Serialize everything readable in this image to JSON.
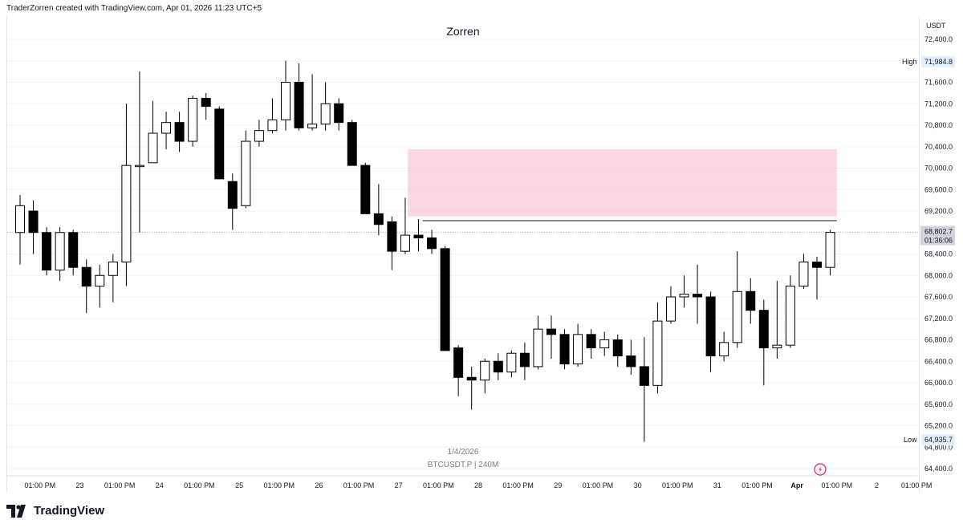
{
  "header": {
    "credit": "TraderZorren created with TradingView.com, Apr 01, 2026 11:23 UTC+5"
  },
  "footer": {
    "brand": "TradingView"
  },
  "chart_data": {
    "type": "candlestick",
    "title": "Zorren",
    "symbol_label": "BTCUSDT.P | 240M",
    "date_label": "1/4/2026",
    "currency": "USDT",
    "ylim": [
      64000,
      72800
    ],
    "y_ticks": [
      72400,
      72000,
      71600,
      71200,
      70800,
      70400,
      70000,
      69600,
      69200,
      68800,
      68400,
      68000,
      67600,
      67200,
      66800,
      66400,
      66000,
      65600,
      65200,
      64800,
      64400
    ],
    "y_tick_labels": [
      "72,400.0",
      "72,000.0",
      "71,600.0",
      "71,200.0",
      "70,800.0",
      "70,400.0",
      "70,000.0",
      "69,600.0",
      "69,200.0",
      "68,800.0",
      "68,400.0",
      "68,000.0",
      "67,600.0",
      "67,200.0",
      "66,800.0",
      "66,400.0",
      "66,000.0",
      "65,600.0",
      "65,200.0",
      "64,800.0",
      "64,400.0"
    ],
    "x_ticks": [
      {
        "idx": 1.5,
        "label": "01:00 PM",
        "bold": false
      },
      {
        "idx": 4.5,
        "label": "23",
        "bold": false
      },
      {
        "idx": 7.5,
        "label": "01:00 PM",
        "bold": false
      },
      {
        "idx": 10.5,
        "label": "24",
        "bold": false
      },
      {
        "idx": 13.5,
        "label": "01:00 PM",
        "bold": false
      },
      {
        "idx": 16.5,
        "label": "25",
        "bold": false
      },
      {
        "idx": 19.5,
        "label": "01:00 PM",
        "bold": false
      },
      {
        "idx": 22.5,
        "label": "26",
        "bold": false
      },
      {
        "idx": 25.5,
        "label": "01:00 PM",
        "bold": false
      },
      {
        "idx": 28.5,
        "label": "27",
        "bold": false
      },
      {
        "idx": 31.5,
        "label": "01:00 PM",
        "bold": false
      },
      {
        "idx": 34.5,
        "label": "28",
        "bold": false
      },
      {
        "idx": 37.5,
        "label": "01:00 PM",
        "bold": false
      },
      {
        "idx": 40.5,
        "label": "29",
        "bold": false
      },
      {
        "idx": 43.5,
        "label": "01:00 PM",
        "bold": false
      },
      {
        "idx": 46.5,
        "label": "30",
        "bold": false
      },
      {
        "idx": 49.5,
        "label": "01:00 PM",
        "bold": false
      },
      {
        "idx": 52.5,
        "label": "31",
        "bold": false
      },
      {
        "idx": 55.5,
        "label": "01:00 PM",
        "bold": false
      },
      {
        "idx": 58.5,
        "label": "Apr",
        "bold": true
      },
      {
        "idx": 61.5,
        "label": "01:00 PM",
        "bold": false
      },
      {
        "idx": 64.5,
        "label": "2",
        "bold": false
      },
      {
        "idx": 67.5,
        "label": "01:00 PM",
        "bold": false
      }
    ],
    "candles": [
      {
        "o": 68800,
        "h": 69500,
        "l": 68200,
        "c": 69300
      },
      {
        "o": 69200,
        "h": 69400,
        "l": 68400,
        "c": 68800
      },
      {
        "o": 68800,
        "h": 68900,
        "l": 68000,
        "c": 68100
      },
      {
        "o": 68100,
        "h": 68900,
        "l": 67900,
        "c": 68800
      },
      {
        "o": 68800,
        "h": 68850,
        "l": 68000,
        "c": 68150
      },
      {
        "o": 68150,
        "h": 68300,
        "l": 67300,
        "c": 67800
      },
      {
        "o": 67800,
        "h": 68200,
        "l": 67400,
        "c": 68000
      },
      {
        "o": 68000,
        "h": 68400,
        "l": 67500,
        "c": 68250
      },
      {
        "o": 68250,
        "h": 71200,
        "l": 67800,
        "c": 70050
      },
      {
        "o": 70050,
        "h": 71800,
        "l": 68800,
        "c": 70050
      },
      {
        "o": 70100,
        "h": 71250,
        "l": 70100,
        "c": 70650
      },
      {
        "o": 70650,
        "h": 71050,
        "l": 70350,
        "c": 70850
      },
      {
        "o": 70850,
        "h": 71050,
        "l": 70300,
        "c": 70500
      },
      {
        "o": 70500,
        "h": 71350,
        "l": 70400,
        "c": 71300
      },
      {
        "o": 71300,
        "h": 71400,
        "l": 70900,
        "c": 71150
      },
      {
        "o": 71100,
        "h": 71150,
        "l": 69800,
        "c": 69800
      },
      {
        "o": 69750,
        "h": 69900,
        "l": 68850,
        "c": 69250
      },
      {
        "o": 69300,
        "h": 70700,
        "l": 69250,
        "c": 70500
      },
      {
        "o": 70500,
        "h": 70900,
        "l": 70400,
        "c": 70700
      },
      {
        "o": 70700,
        "h": 71300,
        "l": 70650,
        "c": 70900
      },
      {
        "o": 70900,
        "h": 72000,
        "l": 70700,
        "c": 71600
      },
      {
        "o": 71600,
        "h": 71950,
        "l": 70700,
        "c": 70750
      },
      {
        "o": 70750,
        "h": 71750,
        "l": 70700,
        "c": 70820
      },
      {
        "o": 70820,
        "h": 71600,
        "l": 70700,
        "c": 71200
      },
      {
        "o": 71200,
        "h": 71300,
        "l": 70700,
        "c": 70850
      },
      {
        "o": 70850,
        "h": 70900,
        "l": 70050,
        "c": 70050
      },
      {
        "o": 70050,
        "h": 70100,
        "l": 69150,
        "c": 69150
      },
      {
        "o": 69150,
        "h": 69700,
        "l": 68750,
        "c": 68950
      },
      {
        "o": 69000,
        "h": 69100,
        "l": 68100,
        "c": 68450
      },
      {
        "o": 68450,
        "h": 69450,
        "l": 68400,
        "c": 68750
      },
      {
        "o": 68750,
        "h": 69050,
        "l": 68450,
        "c": 68700
      },
      {
        "o": 68700,
        "h": 68850,
        "l": 68400,
        "c": 68500
      },
      {
        "o": 68500,
        "h": 68550,
        "l": 66600,
        "c": 66600
      },
      {
        "o": 66650,
        "h": 66700,
        "l": 65750,
        "c": 66100
      },
      {
        "o": 66100,
        "h": 66300,
        "l": 65500,
        "c": 66050
      },
      {
        "o": 66050,
        "h": 66450,
        "l": 65800,
        "c": 66400
      },
      {
        "o": 66400,
        "h": 66550,
        "l": 66050,
        "c": 66200
      },
      {
        "o": 66200,
        "h": 66600,
        "l": 66100,
        "c": 66550
      },
      {
        "o": 66550,
        "h": 66750,
        "l": 66050,
        "c": 66300
      },
      {
        "o": 66300,
        "h": 67250,
        "l": 66250,
        "c": 67000
      },
      {
        "o": 67000,
        "h": 67250,
        "l": 66450,
        "c": 66900
      },
      {
        "o": 66900,
        "h": 67000,
        "l": 66250,
        "c": 66350
      },
      {
        "o": 66350,
        "h": 67100,
        "l": 66300,
        "c": 66900
      },
      {
        "o": 66900,
        "h": 67000,
        "l": 66450,
        "c": 66650
      },
      {
        "o": 66650,
        "h": 66950,
        "l": 66500,
        "c": 66800
      },
      {
        "o": 66800,
        "h": 66900,
        "l": 66300,
        "c": 66500
      },
      {
        "o": 66500,
        "h": 66800,
        "l": 66150,
        "c": 66300
      },
      {
        "o": 66300,
        "h": 66850,
        "l": 64900,
        "c": 65950
      },
      {
        "o": 65950,
        "h": 67500,
        "l": 65800,
        "c": 67150
      },
      {
        "o": 67150,
        "h": 67800,
        "l": 67100,
        "c": 67600
      },
      {
        "o": 67600,
        "h": 68000,
        "l": 67400,
        "c": 67650
      },
      {
        "o": 67650,
        "h": 68200,
        "l": 67100,
        "c": 67600
      },
      {
        "o": 67600,
        "h": 67700,
        "l": 66200,
        "c": 66500
      },
      {
        "o": 66500,
        "h": 66950,
        "l": 66400,
        "c": 66750
      },
      {
        "o": 66750,
        "h": 68450,
        "l": 66650,
        "c": 67700
      },
      {
        "o": 67700,
        "h": 67950,
        "l": 67100,
        "c": 67350
      },
      {
        "o": 67350,
        "h": 67550,
        "l": 65950,
        "c": 66650
      },
      {
        "o": 66650,
        "h": 67900,
        "l": 66450,
        "c": 66700
      },
      {
        "o": 66700,
        "h": 68000,
        "l": 66650,
        "c": 67800
      },
      {
        "o": 67800,
        "h": 68400,
        "l": 67750,
        "c": 68250
      },
      {
        "o": 68250,
        "h": 68350,
        "l": 67550,
        "c": 68150
      },
      {
        "o": 68150,
        "h": 68850,
        "l": 68000,
        "c": 68802.7
      }
    ],
    "zone": {
      "x_start": 29.2,
      "x_end": 61.5,
      "top": 70350,
      "bottom": 69100,
      "color": "#f8bbd0"
    },
    "hline": {
      "x_start": 30.3,
      "x_end": 61.5,
      "value": 69020
    },
    "last_price_line": 68802.7,
    "markers": {
      "high": {
        "label": "High",
        "value": 71984.8,
        "text": "71,984.8"
      },
      "low": {
        "label": "Low",
        "value": 64935.7,
        "text": "64,935.7"
      },
      "last": {
        "value": 68802.7,
        "text": "68,802.7",
        "countdown": "01:36:06"
      }
    },
    "colors": {
      "up": "#ffffff",
      "down": "#000000",
      "wick": "#000000",
      "grid": "#f0f3fa",
      "event_icon": "#e91e63"
    }
  }
}
